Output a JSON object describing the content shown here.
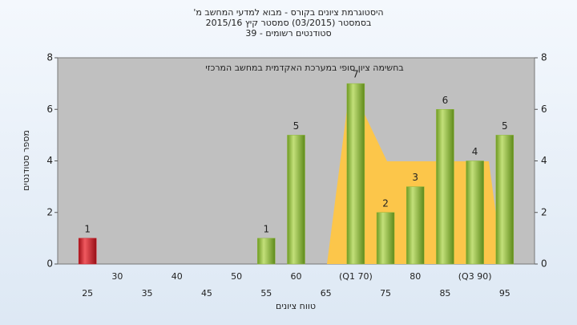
{
  "chart_data": {
    "type": "bar",
    "title": [
      "'היסטוגרמת ציונים בקורס - מבוא למדעי המחשב מ",
      "בסמסטר  (03/2015)  סמסטר קיץ  2015/16",
      "סטודנטים רשומים - 39"
    ],
    "annotation": "בחשימה ציון סופי במערכת האקדמית במחשב המרכזי",
    "x_label": "טווח ציונים",
    "y_label": "מספר סטודנטים",
    "categories": [
      "25",
      "30",
      "35",
      "40",
      "45",
      "50",
      "55",
      "60",
      "65",
      "(Q1 70)",
      "75",
      "80",
      "85",
      "(Q3 90)",
      "95"
    ],
    "values": [
      1,
      0,
      0,
      0,
      0,
      0,
      1,
      5,
      0,
      7,
      2,
      3,
      6,
      4,
      5
    ],
    "colors": [
      "#d0202a",
      "#8cb63c",
      "#8cb63c",
      "#8cb63c",
      "#8cb63c",
      "#8cb63c",
      "#8cb63c",
      "#8cb63c",
      "#8cb63c",
      "#8cb63c",
      "#8cb63c",
      "#8cb63c",
      "#8cb63c",
      "#8cb63c",
      "#8cb63c"
    ],
    "ylim": [
      0,
      8
    ],
    "yticks": [
      0,
      2,
      4,
      6,
      8
    ],
    "y2lim": [
      0,
      8
    ],
    "y2ticks": [
      0,
      2,
      4,
      6,
      8
    ],
    "grid": false
  }
}
